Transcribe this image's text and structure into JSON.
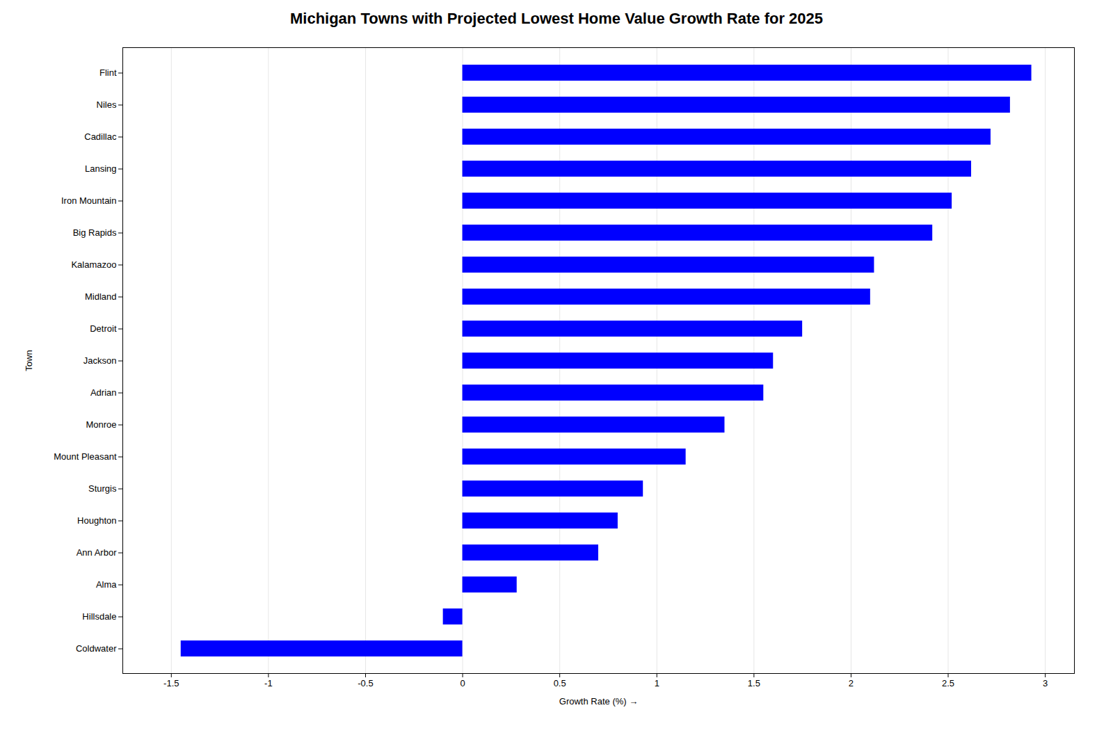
{
  "chart_data": {
    "type": "bar",
    "orientation": "horizontal",
    "title": "Michigan Towns with Projected Lowest Home Value Growth Rate for 2025",
    "xlabel": "Growth Rate (%)",
    "ylabel": "Town",
    "categories": [
      "Flint",
      "Niles",
      "Cadillac",
      "Lansing",
      "Iron Mountain",
      "Big Rapids",
      "Kalamazoo",
      "Midland",
      "Detroit",
      "Jackson",
      "Adrian",
      "Monroe",
      "Mount Pleasant",
      "Sturgis",
      "Houghton",
      "Ann Arbor",
      "Alma",
      "Hillsdale",
      "Coldwater"
    ],
    "values": [
      2.93,
      2.82,
      2.72,
      2.62,
      2.52,
      2.42,
      2.12,
      2.1,
      1.75,
      1.6,
      1.55,
      1.35,
      1.15,
      0.93,
      0.8,
      0.7,
      0.28,
      -0.1,
      -1.45
    ],
    "color": "#0000ff",
    "xlim": [
      -1.75,
      3.15
    ],
    "xticks": [
      -1.5,
      -1,
      -0.5,
      0,
      0.5,
      1,
      1.5,
      2,
      2.5,
      3
    ],
    "grid": true
  }
}
